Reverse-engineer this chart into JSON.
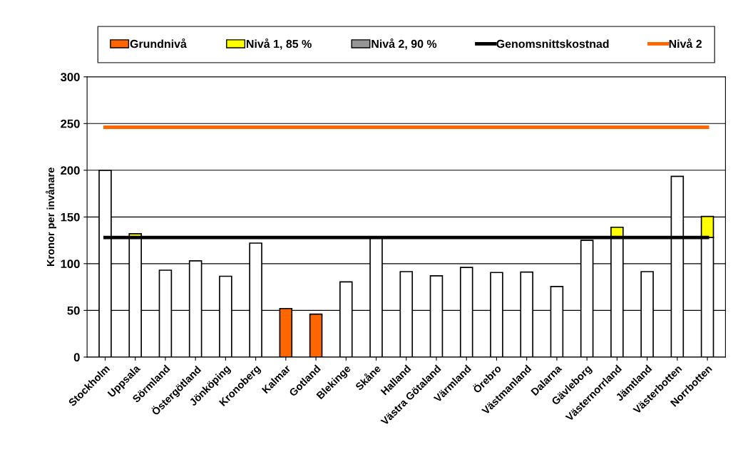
{
  "chart_data": {
    "type": "bar",
    "stacked": true,
    "ylabel": "Kronor per invånare",
    "categories": [
      "Stockholm",
      "Uppsala",
      "Sörmland",
      "Östergötland",
      "Jönköping",
      "Kronoberg",
      "Kalmar",
      "Gotland",
      "Blekinge",
      "Skåne",
      "Halland",
      "Västra Götaland",
      "Värmland",
      "Örebro",
      "Västmanland",
      "Dalarna",
      "Gävleborg",
      "Västernorrland",
      "Jämtland",
      "Västerbotten",
      "Norrbotten"
    ],
    "series": [
      {
        "name": "Grundnivå",
        "color": "#ff6600",
        "values": [
          null,
          null,
          null,
          null,
          null,
          null,
          52,
          46,
          null,
          null,
          null,
          null,
          null,
          null,
          null,
          null,
          null,
          null,
          null,
          null,
          null
        ]
      },
      {
        "color": "#ffffff",
        "values": [
          200,
          128,
          93,
          103,
          86.5,
          122,
          null,
          null,
          80.5,
          129,
          91.5,
          87,
          96,
          90.5,
          91,
          75.5,
          125,
          128,
          91.5,
          193.5,
          128
        ]
      },
      {
        "name": "Nivå 1, 85 %",
        "color": "#ffff00",
        "values": [
          null,
          4,
          null,
          null,
          null,
          null,
          null,
          null,
          null,
          null,
          null,
          null,
          null,
          null,
          null,
          null,
          null,
          11,
          null,
          null,
          22.5
        ]
      },
      {
        "name": "Nivå 2, 90 %",
        "color": "#969696",
        "values": [
          null,
          null,
          null,
          null,
          null,
          null,
          null,
          null,
          null,
          null,
          null,
          null,
          null,
          null,
          null,
          null,
          null,
          null,
          null,
          null,
          null
        ]
      },
      {
        "name": "Genomsnittskostnad",
        "type": "line",
        "color": "#000000",
        "values": [
          128,
          128,
          128,
          128,
          128,
          128,
          128,
          128,
          128,
          128,
          128,
          128,
          128,
          128,
          128,
          128,
          128,
          128,
          128,
          128,
          128
        ]
      },
      {
        "name": "Nivå 2",
        "type": "line",
        "color": "#ff6600",
        "values": [
          246,
          246,
          246,
          246,
          246,
          246,
          246,
          246,
          246,
          246,
          246,
          246,
          246,
          246,
          246,
          246,
          246,
          246,
          246,
          246,
          246
        ]
      }
    ],
    "ylim": [
      0,
      300
    ],
    "yticks": [
      0,
      50,
      100,
      150,
      200,
      250,
      300
    ],
    "grid": "y",
    "legend": "top"
  }
}
